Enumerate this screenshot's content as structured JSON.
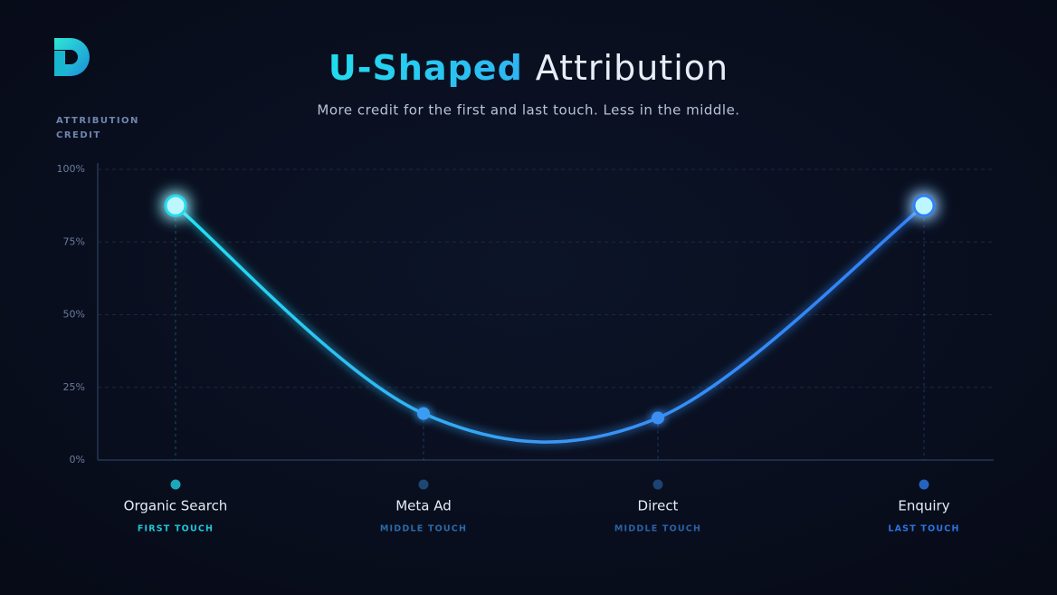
{
  "chart_data": {
    "type": "line",
    "title_highlight": "U-Shaped",
    "title": "Attribution",
    "subtitle": "More credit for the first and last touch. Less in the middle.",
    "y_label": [
      "ATTRIBUTION",
      "CREDIT"
    ],
    "categories": [
      "Organic Search",
      "Meta Ad",
      "Direct",
      "Enquiry"
    ],
    "category_roles": [
      "FIRST TOUCH",
      "MIDDLE TOUCH",
      "MIDDLE TOUCH",
      "LAST TOUCH"
    ],
    "values": [
      87.5,
      16,
      14.5,
      87.5
    ],
    "colors": [
      "#22dcef",
      "#3b9cf3",
      "#3b8ff3",
      "#2f80f7"
    ],
    "ylim": [
      0,
      100
    ],
    "yticks": [
      {
        "value": 0,
        "label": "0%"
      },
      {
        "value": 25,
        "label": "25%"
      },
      {
        "value": 50,
        "label": "50%"
      },
      {
        "value": 75,
        "label": "75%"
      },
      {
        "value": 100,
        "label": "100%"
      }
    ],
    "grid": true
  }
}
